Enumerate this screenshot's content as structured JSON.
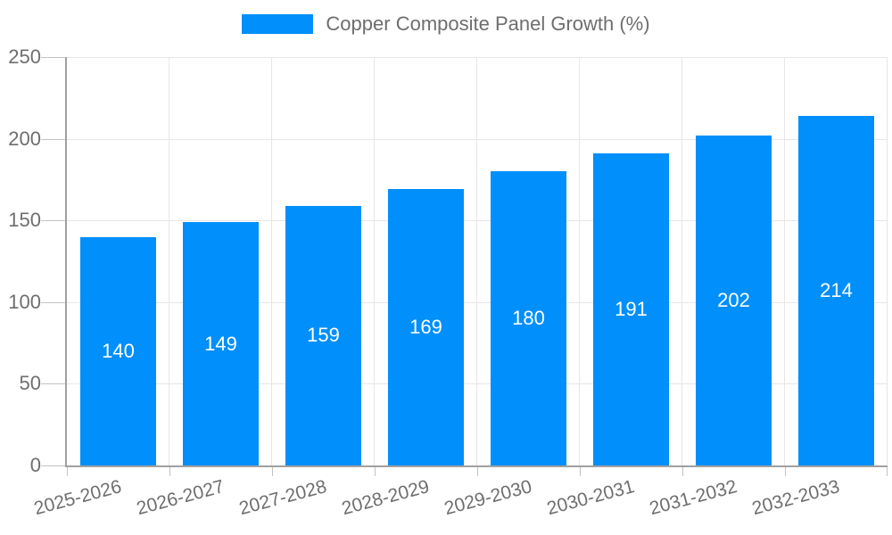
{
  "chart_data": {
    "type": "bar",
    "title": "",
    "legend": [
      {
        "label": "Copper Composite Panel Growth (%)",
        "marker": "square",
        "color": "#008FFB"
      }
    ],
    "legend_position": "top",
    "categories": [
      "2025-2026",
      "2026-2027",
      "2027-2028",
      "2028-2029",
      "2029-2030",
      "2030-2031",
      "2031-2032",
      "2032-2033"
    ],
    "series": [
      {
        "name": "Copper Composite Panel Growth (%)",
        "values": [
          140,
          149,
          159,
          169,
          180,
          191,
          202,
          214
        ]
      }
    ],
    "bar_labels": [
      "140",
      "149",
      "159",
      "169",
      "180",
      "191",
      "202",
      "214"
    ],
    "xlabel": "",
    "ylabel": "",
    "ylim": [
      0,
      250
    ],
    "yticks": [
      0,
      50,
      100,
      150,
      200,
      250
    ],
    "grid": "both",
    "colors": {
      "bar": "#008FFB",
      "bar_label": "#ffffff",
      "grid_line": "#e6e6e6",
      "axis_line": "#a0a0a0",
      "tick_mark": "#c2c2c2",
      "axis_text": "#6e6e6e",
      "legend_text": "#6e6e6e",
      "background": "#ffffff"
    }
  }
}
